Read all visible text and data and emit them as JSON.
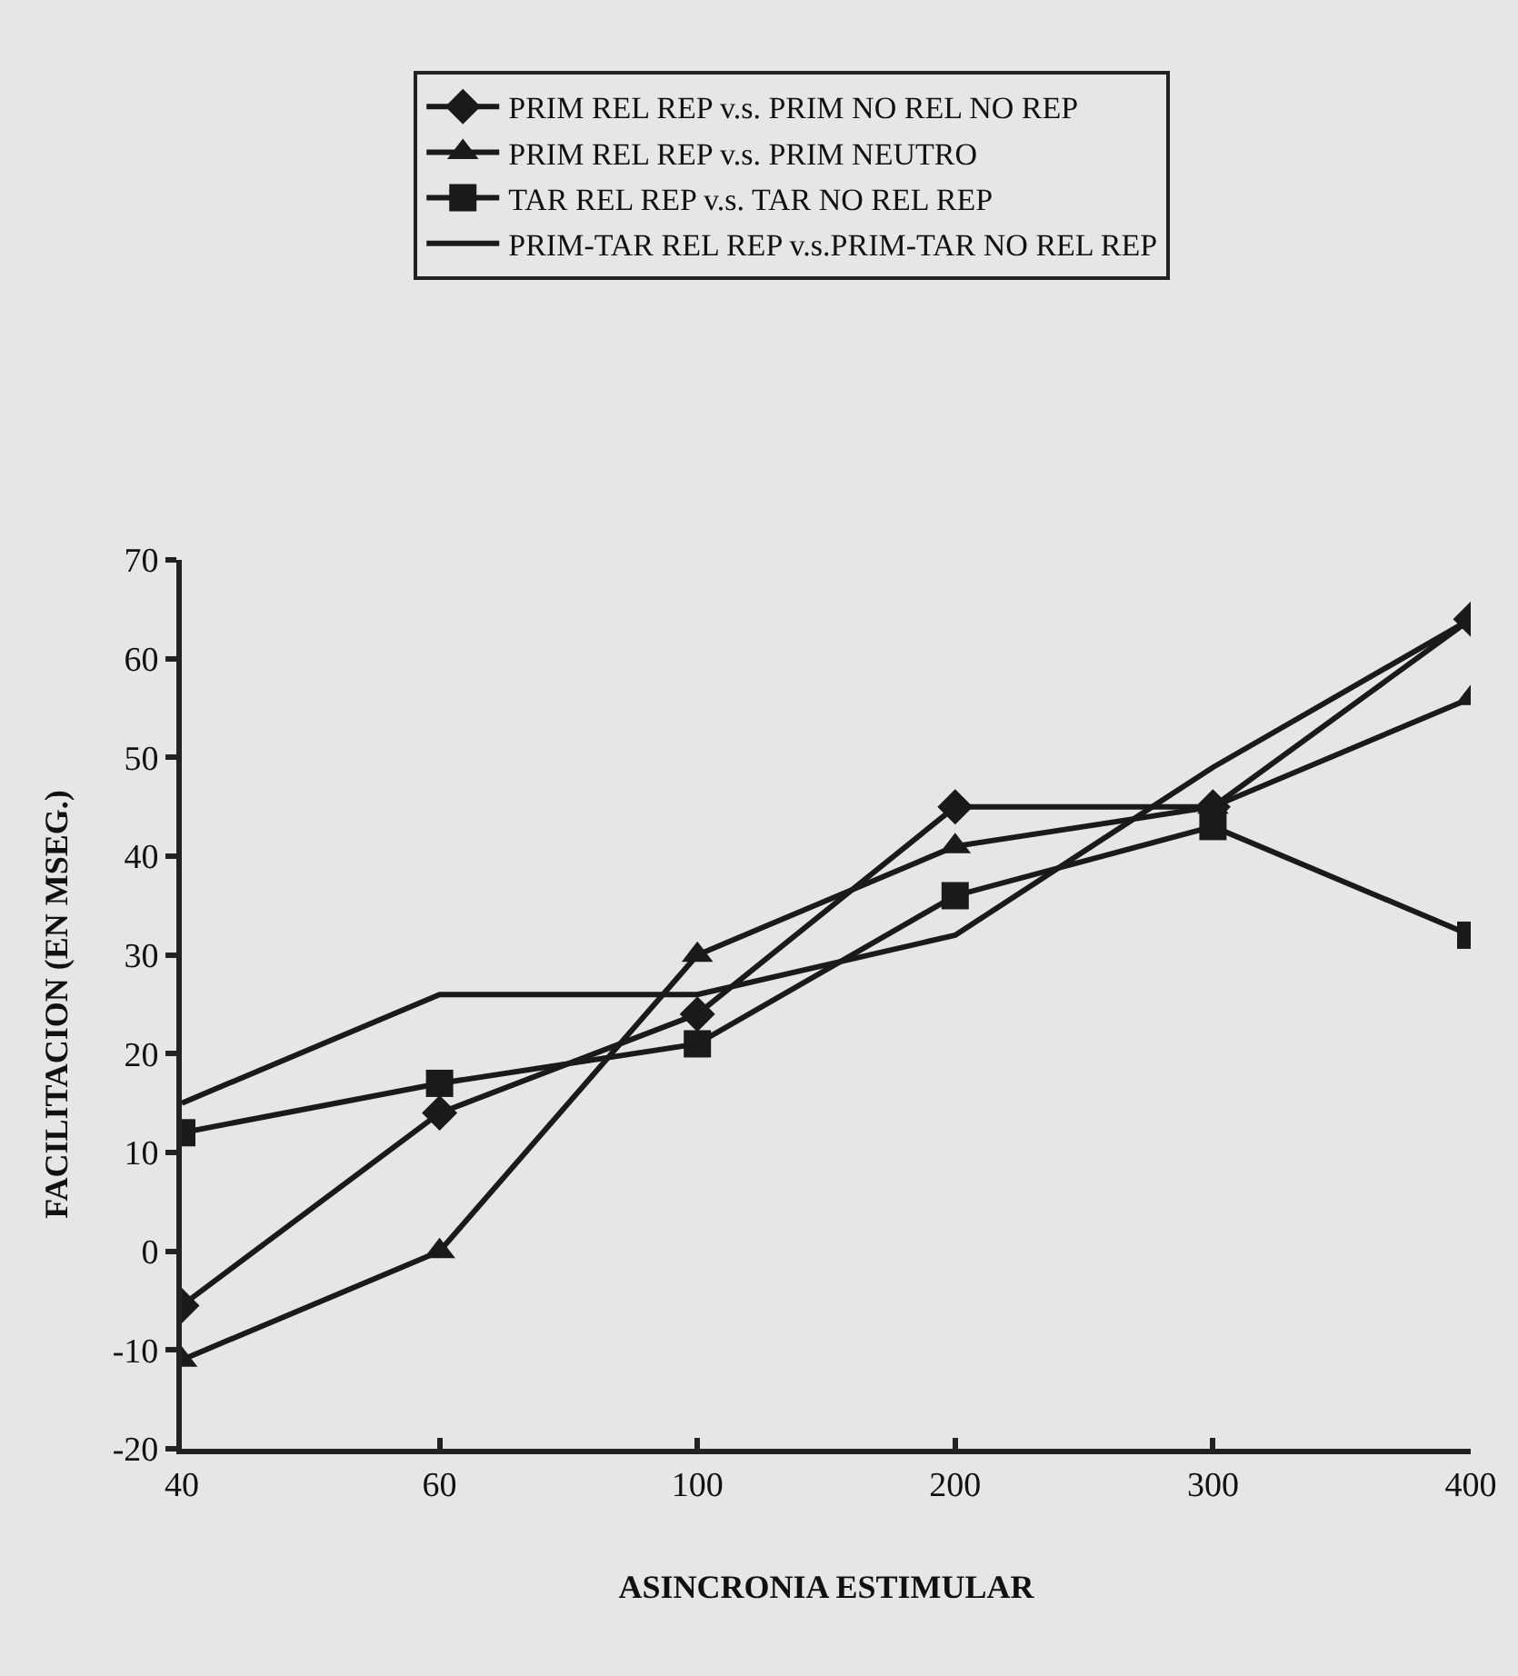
{
  "chart_data": {
    "type": "line",
    "xlabel": "ASINCRONIA ESTIMULAR",
    "ylabel": "FACILITACION (EN MSEG.)",
    "categories": [
      "40",
      "60",
      "100",
      "200",
      "300",
      "400"
    ],
    "series": [
      {
        "name": "PRIM REL REP v.s. PRIM NO REL NO REP",
        "color": "#1a1a1a",
        "marker": "diamond",
        "values": [
          -5.5,
          14,
          24,
          45,
          45,
          64
        ]
      },
      {
        "name": "PRIM REL REP v.s. PRIM NEUTRO",
        "color": "#1a1a1a",
        "marker": "triangle",
        "values": [
          -11,
          0,
          30,
          41,
          45,
          56
        ]
      },
      {
        "name": "TAR REL REP v.s. TAR NO REL REP",
        "color": "#1a1a1a",
        "marker": "square",
        "values": [
          12,
          17,
          21,
          36,
          43,
          32
        ]
      },
      {
        "name": "PRIM-TAR REL REP v.s.PRIM-TAR NO REL REP",
        "color": "#1a1a1a",
        "marker": "none",
        "values": [
          15,
          26,
          26,
          32,
          49,
          64
        ]
      }
    ],
    "ylim": [
      -20,
      70
    ],
    "yticks": [
      -20,
      -10,
      0,
      10,
      20,
      30,
      40,
      50,
      60,
      70
    ],
    "grid": false,
    "legend": "top",
    "line_style": "solid"
  }
}
